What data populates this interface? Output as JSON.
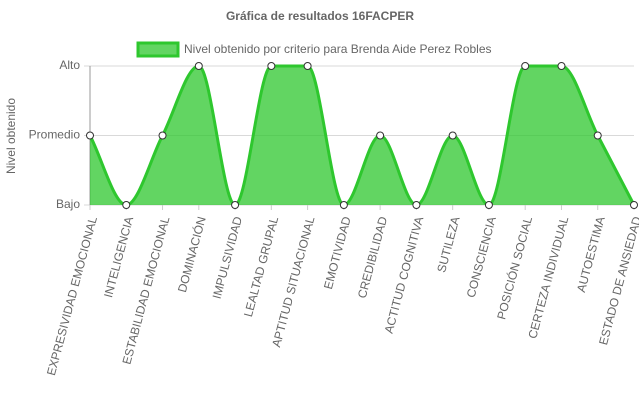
{
  "chart_data": {
    "type": "area",
    "title": "Gráfica de resultados 16FACPER",
    "y_label": "Nivel obtenido",
    "categories": [
      "EXPRESIVIDAD EMOCIONAL",
      "INTELIGENCIA",
      "ESTABILIDAD EMOCIONAL",
      "DOMINACIÓN",
      "IMPULSIVIDAD",
      "LEALTAD GRUPAL",
      "APTITUD SITUACIONAL",
      "EMOTIVIDAD",
      "CREDIBILIDAD",
      "ACTITUD COGNITIVA",
      "SUTILEZA",
      "CONSCIENCIA",
      "POSICIÓN SOCIAL",
      "CERTEZA INDIVIDUAL",
      "AUTOESTIMA",
      "ESTADO DE ANSIEDAD"
    ],
    "series": [
      {
        "name": "Nivel obtenido por criterio para Brenda Aide Perez Robles",
        "color": "#2ec72e",
        "values": [
          1,
          0,
          1,
          2,
          0,
          2,
          2,
          0,
          1,
          0,
          1,
          0,
          2,
          2,
          1,
          0
        ]
      }
    ],
    "ylim": [
      0,
      2
    ],
    "yticks": [
      {
        "value": 0,
        "label": "Bajo"
      },
      {
        "value": 1,
        "label": "Promedio"
      },
      {
        "value": 2,
        "label": "Alto"
      }
    ],
    "grid": true
  }
}
